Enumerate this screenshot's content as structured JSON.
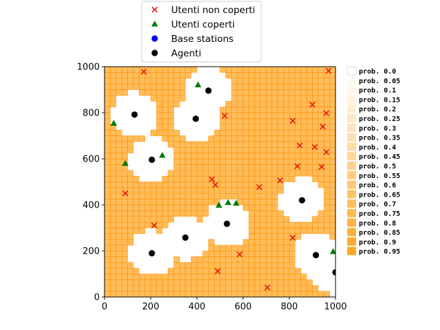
{
  "chart_data": {
    "type": "scatter",
    "xlim": [
      0,
      1000
    ],
    "ylim": [
      0,
      1000
    ],
    "x_ticks": [
      "0",
      "200",
      "400",
      "600",
      "800",
      "1000"
    ],
    "y_ticks": [
      "0",
      "200",
      "400",
      "600",
      "800",
      "1000"
    ],
    "grid": false,
    "heatmap": {
      "cell_size": 25,
      "base_color": "#ffa31a",
      "cell_edge_color": "#ff8c00",
      "coverage_radius": 100
    },
    "series": [
      {
        "name": "Utenti non coperti",
        "marker": "x",
        "color": "#e8140c",
        "points": [
          [
            170,
            978
          ],
          [
            970,
            982
          ],
          [
            900,
            835
          ],
          [
            520,
            787
          ],
          [
            960,
            798
          ],
          [
            815,
            765
          ],
          [
            945,
            740
          ],
          [
            845,
            658
          ],
          [
            910,
            651
          ],
          [
            960,
            629
          ],
          [
            835,
            568
          ],
          [
            940,
            565
          ],
          [
            465,
            511
          ],
          [
            480,
            487
          ],
          [
            760,
            506
          ],
          [
            670,
            477
          ],
          [
            90,
            450
          ],
          [
            215,
            311
          ],
          [
            815,
            257
          ],
          [
            585,
            185
          ],
          [
            490,
            112
          ],
          [
            705,
            41
          ]
        ]
      },
      {
        "name": "Utenti coperti",
        "marker": "triangle",
        "color": "#007a00",
        "points": [
          [
            40,
            754
          ],
          [
            405,
            921
          ],
          [
            250,
            615
          ],
          [
            90,
            580
          ],
          [
            495,
            398
          ],
          [
            535,
            410
          ],
          [
            570,
            407
          ],
          [
            990,
            197
          ]
        ]
      },
      {
        "name": "Base stations",
        "marker": "circle",
        "color": "#0000ff",
        "points": []
      },
      {
        "name": "Agenti",
        "marker": "circle",
        "color": "#000000",
        "points": [
          [
            450,
            896
          ],
          [
            130,
            792
          ],
          [
            395,
            774
          ],
          [
            205,
            596
          ],
          [
            855,
            420
          ],
          [
            530,
            318
          ],
          [
            350,
            258
          ],
          [
            205,
            190
          ],
          [
            915,
            182
          ],
          [
            1000,
            107
          ]
        ]
      }
    ],
    "prob_legend": [
      {
        "label": "prob. 0.0",
        "alpha": 0.0
      },
      {
        "label": "prob. 0.05",
        "alpha": 0.05
      },
      {
        "label": "prob. 0.1",
        "alpha": 0.1
      },
      {
        "label": "prob. 0.15",
        "alpha": 0.15
      },
      {
        "label": "prob. 0.2",
        "alpha": 0.2
      },
      {
        "label": "prob. 0.25",
        "alpha": 0.25
      },
      {
        "label": "prob. 0.3",
        "alpha": 0.3
      },
      {
        "label": "prob. 0.35",
        "alpha": 0.35
      },
      {
        "label": "prob. 0.4",
        "alpha": 0.4
      },
      {
        "label": "prob. 0.45",
        "alpha": 0.45
      },
      {
        "label": "prob. 0.5",
        "alpha": 0.5
      },
      {
        "label": "prob. 0.55",
        "alpha": 0.55
      },
      {
        "label": "prob. 0.6",
        "alpha": 0.6
      },
      {
        "label": "prob. 0.65",
        "alpha": 0.65
      },
      {
        "label": "prob. 0.7",
        "alpha": 0.7
      },
      {
        "label": "prob. 0.75",
        "alpha": 0.75
      },
      {
        "label": "prob. 0.8",
        "alpha": 0.8
      },
      {
        "label": "prob. 0.85",
        "alpha": 0.85
      },
      {
        "label": "prob. 0.9",
        "alpha": 0.9
      },
      {
        "label": "prob. 0.95",
        "alpha": 0.95
      }
    ]
  }
}
